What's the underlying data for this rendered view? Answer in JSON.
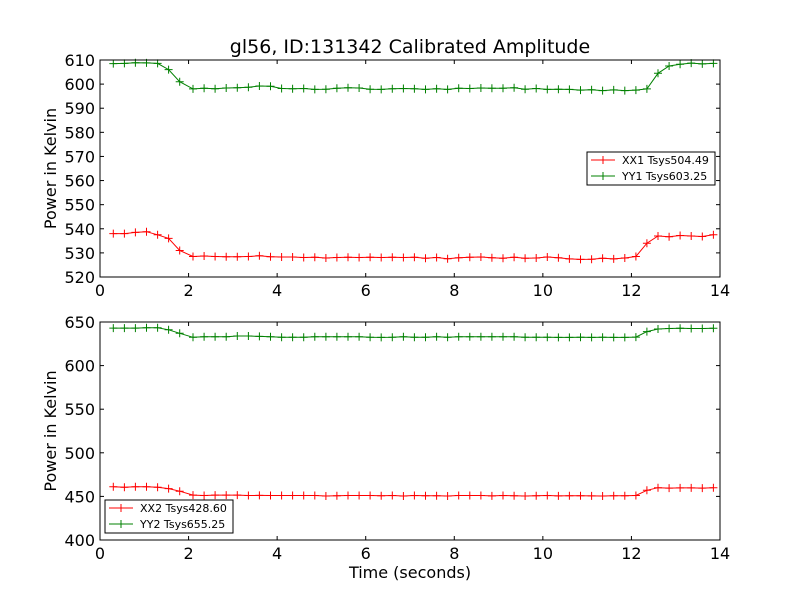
{
  "title": "gl56, ID:131342 Calibrated Amplitude",
  "colors": {
    "red": "#ff0000",
    "green": "#008000"
  },
  "chart_data": [
    {
      "type": "line",
      "xlabel": "",
      "ylabel": "Power in Kelvin",
      "xlim": [
        0,
        14
      ],
      "ylim": [
        520,
        610
      ],
      "xticks": [
        0,
        2,
        4,
        6,
        8,
        10,
        12,
        14
      ],
      "yticks": [
        520,
        530,
        540,
        550,
        560,
        570,
        580,
        590,
        600,
        610
      ],
      "xtick_labels": [
        "0",
        "2",
        "4",
        "6",
        "8",
        "10",
        "12",
        "14"
      ],
      "ytick_labels": [
        "520",
        "530",
        "540",
        "550",
        "560",
        "570",
        "580",
        "590",
        "600",
        "610"
      ],
      "grid": false,
      "legend_position": "center-right",
      "series": [
        {
          "name": "XX1 Tsys504.49",
          "color": "#ff0000",
          "x": [
            0.3,
            0.55,
            0.8,
            1.05,
            1.3,
            1.55,
            1.8,
            2.1,
            2.35,
            2.6,
            2.85,
            3.1,
            3.35,
            3.6,
            3.85,
            4.1,
            4.35,
            4.6,
            4.85,
            5.1,
            5.35,
            5.6,
            5.85,
            6.1,
            6.35,
            6.6,
            6.85,
            7.1,
            7.35,
            7.6,
            7.85,
            8.1,
            8.35,
            8.6,
            8.85,
            9.1,
            9.35,
            9.6,
            9.85,
            10.1,
            10.35,
            10.6,
            10.85,
            11.1,
            11.35,
            11.6,
            11.85,
            12.1,
            12.35,
            12.6,
            12.85,
            13.1,
            13.35,
            13.6,
            13.85
          ],
          "values": [
            538,
            538,
            538.5,
            538.8,
            537.5,
            536,
            531,
            528.5,
            528.7,
            528.5,
            528.4,
            528.4,
            528.5,
            528.8,
            528.4,
            528.3,
            528.3,
            528.1,
            528.2,
            527.9,
            528.1,
            528.2,
            528.1,
            528.2,
            528.1,
            528.2,
            528.1,
            528.2,
            527.8,
            528.1,
            527.6,
            528,
            528.2,
            528.3,
            528,
            527.8,
            528.2,
            527.8,
            527.9,
            528.3,
            528,
            527.5,
            527.3,
            527.4,
            527.8,
            527.5,
            527.9,
            528.5,
            534,
            537,
            536.7,
            537.2,
            537,
            536.8,
            537.5
          ]
        },
        {
          "name": "YY1 Tsys603.25",
          "color": "#008000",
          "x": [
            0.3,
            0.55,
            0.8,
            1.05,
            1.3,
            1.55,
            1.8,
            2.1,
            2.35,
            2.6,
            2.85,
            3.1,
            3.35,
            3.6,
            3.85,
            4.1,
            4.35,
            4.6,
            4.85,
            5.1,
            5.35,
            5.6,
            5.85,
            6.1,
            6.35,
            6.6,
            6.85,
            7.1,
            7.35,
            7.6,
            7.85,
            8.1,
            8.35,
            8.6,
            8.85,
            9.1,
            9.35,
            9.6,
            9.85,
            10.1,
            10.35,
            10.6,
            10.85,
            11.1,
            11.35,
            11.6,
            11.85,
            12.1,
            12.35,
            12.6,
            12.85,
            13.1,
            13.35,
            13.6,
            13.85
          ],
          "values": [
            608.5,
            608.6,
            608.9,
            608.8,
            608.6,
            606,
            601,
            598,
            598.3,
            598.1,
            598.4,
            598.5,
            598.7,
            599.2,
            599.1,
            598.2,
            598.1,
            598.2,
            597.8,
            597.9,
            598.3,
            598.5,
            598.4,
            597.9,
            597.8,
            598.1,
            598.2,
            598.1,
            597.8,
            598.1,
            597.8,
            598.3,
            598.2,
            598.4,
            598.3,
            598.3,
            598.5,
            597.9,
            598.2,
            597.8,
            597.9,
            597.8,
            597.5,
            597.7,
            597.3,
            597.6,
            597.3,
            597.5,
            598,
            604.5,
            607.5,
            608.2,
            608.7,
            608.4,
            608.6
          ]
        }
      ]
    },
    {
      "type": "line",
      "xlabel": "Time (seconds)",
      "ylabel": "Power in Kelvin",
      "xlim": [
        0,
        14
      ],
      "ylim": [
        400,
        650
      ],
      "xticks": [
        0,
        2,
        4,
        6,
        8,
        10,
        12,
        14
      ],
      "yticks": [
        400,
        450,
        500,
        550,
        600,
        650
      ],
      "xtick_labels": [
        "0",
        "2",
        "4",
        "6",
        "8",
        "10",
        "12",
        "14"
      ],
      "ytick_labels": [
        "400",
        "450",
        "500",
        "550",
        "600",
        "650"
      ],
      "grid": false,
      "legend_position": "lower-left",
      "series": [
        {
          "name": "XX2 Tsys428.60",
          "color": "#ff0000",
          "x": [
            0.3,
            0.55,
            0.8,
            1.05,
            1.3,
            1.55,
            1.8,
            2.1,
            2.35,
            2.6,
            2.85,
            3.1,
            3.35,
            3.6,
            3.85,
            4.1,
            4.35,
            4.6,
            4.85,
            5.1,
            5.35,
            5.6,
            5.85,
            6.1,
            6.35,
            6.6,
            6.85,
            7.1,
            7.35,
            7.6,
            7.85,
            8.1,
            8.35,
            8.6,
            8.85,
            9.1,
            9.35,
            9.6,
            9.85,
            10.1,
            10.35,
            10.6,
            10.85,
            11.1,
            11.35,
            11.6,
            11.85,
            12.1,
            12.35,
            12.6,
            12.85,
            13.1,
            13.35,
            13.6,
            13.85
          ],
          "values": [
            461,
            460.5,
            461,
            461,
            460.5,
            459,
            456,
            451.5,
            451,
            451.5,
            451.5,
            451.5,
            451,
            451.2,
            451,
            451,
            451,
            451,
            451,
            450.5,
            450.8,
            451,
            451,
            451,
            450.7,
            451,
            450.5,
            451,
            450.8,
            450.7,
            450.5,
            451,
            451,
            451,
            450.6,
            451,
            450.8,
            450.5,
            450.7,
            451,
            450.6,
            450.8,
            450.7,
            450.6,
            450.5,
            450.8,
            450.7,
            451,
            457,
            460,
            459.5,
            459.7,
            459.8,
            459.5,
            460
          ]
        },
        {
          "name": "YY2 Tsys655.25",
          "color": "#008000",
          "x": [
            0.3,
            0.55,
            0.8,
            1.05,
            1.3,
            1.55,
            1.8,
            2.1,
            2.35,
            2.6,
            2.85,
            3.1,
            3.35,
            3.6,
            3.85,
            4.1,
            4.35,
            4.6,
            4.85,
            5.1,
            5.35,
            5.6,
            5.85,
            6.1,
            6.35,
            6.6,
            6.85,
            7.1,
            7.35,
            7.6,
            7.85,
            8.1,
            8.35,
            8.6,
            8.85,
            9.1,
            9.35,
            9.6,
            9.85,
            10.1,
            10.35,
            10.6,
            10.85,
            11.1,
            11.35,
            11.6,
            11.85,
            12.1,
            12.35,
            12.6,
            12.85,
            13.1,
            13.35,
            13.6,
            13.85
          ],
          "values": [
            643,
            643,
            643,
            643.3,
            643.3,
            641,
            637,
            632.5,
            633,
            633,
            633,
            634,
            634,
            633.5,
            633,
            632.5,
            632.5,
            632.5,
            633,
            633,
            633,
            633,
            633,
            632.5,
            632.3,
            632.5,
            633,
            632.5,
            632.5,
            633,
            632.5,
            633,
            633,
            633,
            633,
            633,
            633,
            632.5,
            632.5,
            632.5,
            632.3,
            632.3,
            632.5,
            632.3,
            632.5,
            632.3,
            632.3,
            632.7,
            639,
            642,
            642.5,
            642.8,
            642.5,
            642.6,
            642.9
          ]
        }
      ]
    }
  ]
}
